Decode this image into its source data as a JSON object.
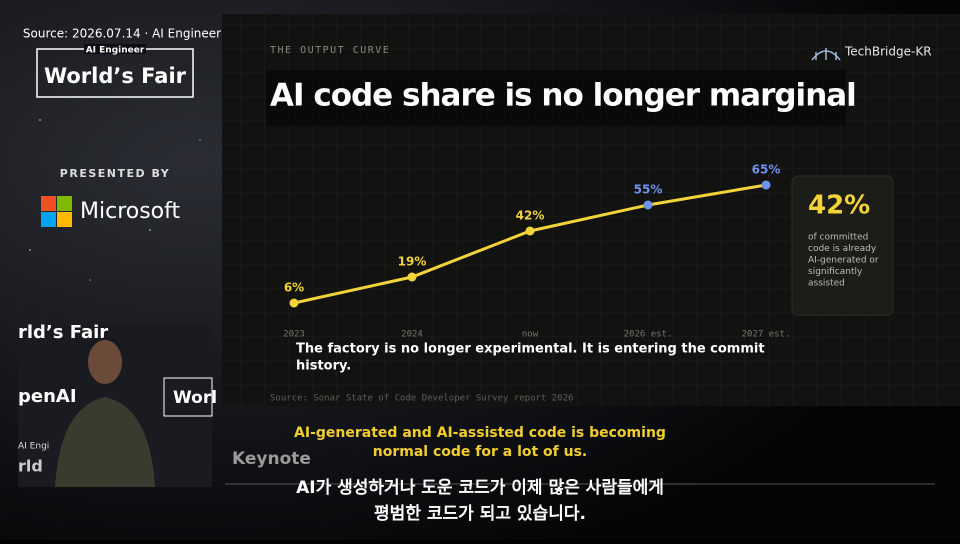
{
  "source_label": "Source: 2026.07.14 · AI Engineer",
  "event": {
    "small": "AI Engineer",
    "name": "World’s Fair"
  },
  "presented_by": "PRESENTED BY",
  "sponsor": "Microsoft",
  "video": {
    "signs": [
      "rld’s Fair",
      "penAI",
      "Worl",
      "AI Engi",
      "rld"
    ],
    "overlay": "Keynote"
  },
  "brand": "TechBridge-KR",
  "slide": {
    "kicker": "THE OUTPUT CURVE",
    "title": "AI code share is no longer marginal",
    "note": [
      "The factory is no longer experimental. It is entering the commit",
      "history."
    ],
    "source": "Source: Sonar State of Code Developer Survey report 2026",
    "stat": {
      "value": "42%",
      "caption": [
        "of committed",
        "code is already",
        "AI-generated or",
        "significantly",
        "assisted"
      ]
    }
  },
  "chart_data": {
    "type": "line",
    "categories": [
      "2023",
      "2024",
      "now",
      "2026 est.",
      "2027 est."
    ],
    "values": [
      6,
      19,
      42,
      55,
      65
    ],
    "value_labels": [
      "6%",
      "19%",
      "42%",
      "55%",
      "65%"
    ],
    "color": "#f2d33a",
    "marker_colors": [
      "#f2d33a",
      "#f2d33a",
      "#f2d33a",
      "#6f93f0",
      "#6f93f0"
    ],
    "ylim": [
      0,
      70
    ]
  },
  "subtitles": {
    "en": [
      "AI-generated and AI-assisted code is becoming",
      "normal code for a lot of us."
    ],
    "ko": [
      "AI가 생성하거나 도운 코드가 이제 많은 사람들에게",
      "평범한 코드가 되고 있습니다."
    ]
  }
}
